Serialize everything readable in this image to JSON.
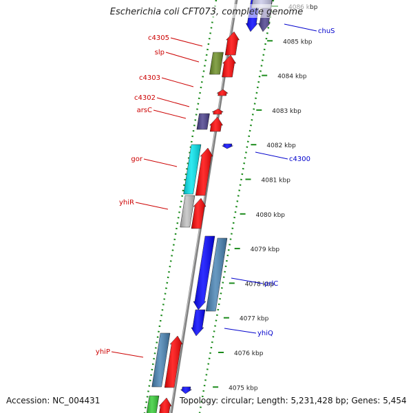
{
  "title": "Escherichia coli CFT073, complete genome",
  "footer": {
    "accession": "Accession: NC_004431",
    "topology": "Topology: circular; Length: 5,231,428 bp; Genes: 5,454"
  },
  "ruler": {
    "ticks": [
      {
        "label": "4086 kbp"
      },
      {
        "label": "4085 kbp"
      },
      {
        "label": "4084 kbp"
      },
      {
        "label": "4083 kbp"
      },
      {
        "label": "4082 kbp"
      },
      {
        "label": "4081 kbp"
      },
      {
        "label": "4080 kbp"
      },
      {
        "label": "4079 kbp"
      },
      {
        "label": "4078 kbp"
      },
      {
        "label": "4077 kbp"
      },
      {
        "label": "4076 kbp"
      },
      {
        "label": "4075 kbp"
      }
    ]
  },
  "gene_labels": {
    "left": [
      "c4305",
      "slp",
      "c4303",
      "c4302",
      "arsC",
      "gor",
      "yhiR",
      "yhiP"
    ],
    "right": [
      "chuS",
      "c4300",
      "prlC",
      "yhiQ"
    ]
  },
  "colors": {
    "forward_label": "#cc0000",
    "reverse_label": "#0000cc",
    "backbone": "#808080",
    "tick_green": "#1a8a1a",
    "red": "#ff0000",
    "blue": "#0000ff",
    "steel": "#4682b4",
    "olive": "#6b8e23",
    "purple": "#483d8b",
    "cyan": "#00e5ee",
    "gray": "#c0c0c0",
    "green": "#33cc33",
    "lavender": "#c8c8e8"
  }
}
